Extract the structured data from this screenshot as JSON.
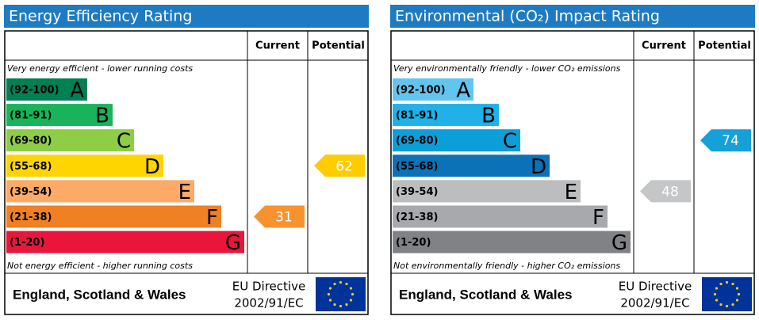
{
  "panels": [
    {
      "title": "Energy Efficiency Rating",
      "columns": [
        "Current",
        "Potential"
      ],
      "top_note": "Very energy efficient - lower running costs",
      "bottom_note": "Not energy efficient - higher running costs",
      "bands": [
        {
          "range": "(92-100)",
          "letter": "A",
          "color": "#008054"
        },
        {
          "range": "(81-91)",
          "letter": "B",
          "color": "#19b459"
        },
        {
          "range": "(69-80)",
          "letter": "C",
          "color": "#8dce46"
        },
        {
          "range": "(55-68)",
          "letter": "D",
          "color": "#ffd500"
        },
        {
          "range": "(39-54)",
          "letter": "E",
          "color": "#fcaa65"
        },
        {
          "range": "(21-38)",
          "letter": "F",
          "color": "#ef8023"
        },
        {
          "range": "(1-20)",
          "letter": "G",
          "color": "#e9153b"
        }
      ],
      "current": {
        "value": 31,
        "color": "#f7922e"
      },
      "potential": {
        "value": 62,
        "color": "#ffcc00"
      },
      "footer": {
        "region": "England, Scotland & Wales",
        "directive": [
          "EU Directive",
          "2002/91/EC"
        ]
      }
    },
    {
      "title": "Environmental (CO₂) Impact Rating",
      "columns": [
        "Current",
        "Potential"
      ],
      "top_note": "Very environmentally friendly - lower CO₂ emissions",
      "bottom_note": "Not environmentally friendly - higher CO₂ emissions",
      "bands": [
        {
          "range": "(92-100)",
          "letter": "A",
          "color": "#63c5ef"
        },
        {
          "range": "(81-91)",
          "letter": "B",
          "color": "#1fb1e7"
        },
        {
          "range": "(69-80)",
          "letter": "C",
          "color": "#0c9ed9"
        },
        {
          "range": "(55-68)",
          "letter": "D",
          "color": "#0b72b8"
        },
        {
          "range": "(39-54)",
          "letter": "E",
          "color": "#bbbdbf"
        },
        {
          "range": "(21-38)",
          "letter": "F",
          "color": "#a7a9ac"
        },
        {
          "range": "(1-20)",
          "letter": "G",
          "color": "#808285"
        }
      ],
      "current": {
        "value": 48,
        "color": "#c4c6c8"
      },
      "potential": {
        "value": 74,
        "color": "#16a0d9"
      },
      "footer": {
        "region": "England, Scotland & Wales",
        "directive": [
          "EU Directive",
          "2002/91/EC"
        ]
      }
    }
  ]
}
